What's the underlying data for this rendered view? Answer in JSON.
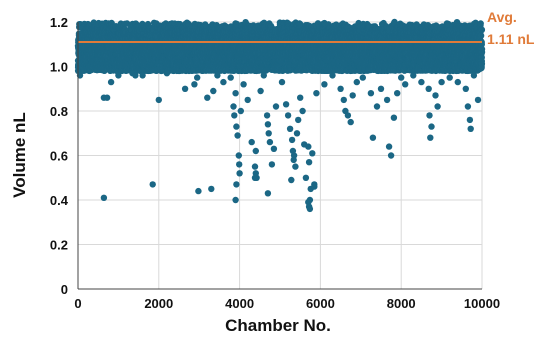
{
  "chart_data": {
    "type": "scatter",
    "xlabel": "Chamber No.",
    "ylabel": "Volume  nL",
    "xlim": [
      0,
      10000
    ],
    "ylim": [
      0,
      1.2
    ],
    "x_ticks": [
      0,
      2000,
      4000,
      6000,
      8000,
      10000
    ],
    "y_ticks": [
      0,
      0.2,
      0.4,
      0.6,
      0.8,
      1.0,
      1.2
    ],
    "y_tick_labels": [
      "0",
      "0.2",
      "0.4",
      "0.6",
      "0.8",
      "1.0",
      "1.2"
    ],
    "grid": true,
    "colors": {
      "points": "#1b6785",
      "average_line": "#e07b39",
      "grid": "#d9d9d9",
      "axis": "#444444"
    },
    "average": {
      "value": 1.11,
      "label_line1": "Avg.",
      "label_line2": "1.11 nL"
    },
    "dense_band": {
      "y_range": [
        0.98,
        1.2
      ],
      "point_count": 10000
    },
    "outliers": [
      [
        50,
        0.96
      ],
      [
        640,
        0.86
      ],
      [
        720,
        0.86
      ],
      [
        820,
        0.93
      ],
      [
        1000,
        0.96
      ],
      [
        1350,
        0.97
      ],
      [
        1420,
        0.96
      ],
      [
        1600,
        0.96
      ],
      [
        2000,
        0.85
      ],
      [
        2200,
        0.97
      ],
      [
        2650,
        0.9
      ],
      [
        2880,
        0.92
      ],
      [
        2950,
        0.95
      ],
      [
        3200,
        0.86
      ],
      [
        3350,
        0.89
      ],
      [
        3450,
        0.96
      ],
      [
        3600,
        0.93
      ],
      [
        3780,
        0.95
      ],
      [
        3850,
        0.82
      ],
      [
        3870,
        0.78
      ],
      [
        3900,
        0.88
      ],
      [
        3920,
        0.73
      ],
      [
        3950,
        0.69
      ],
      [
        3980,
        0.6
      ],
      [
        3990,
        0.56
      ],
      [
        4000,
        0.52
      ],
      [
        4030,
        0.8
      ],
      [
        4100,
        0.92
      ],
      [
        4200,
        0.85
      ],
      [
        4300,
        0.66
      ],
      [
        4380,
        0.55
      ],
      [
        4400,
        0.62
      ],
      [
        4420,
        0.5
      ],
      [
        4520,
        0.89
      ],
      [
        4600,
        0.96
      ],
      [
        4680,
        0.78
      ],
      [
        4700,
        0.74
      ],
      [
        4720,
        0.7
      ],
      [
        4750,
        0.66
      ],
      [
        4800,
        0.56
      ],
      [
        4850,
        0.63
      ],
      [
        4900,
        0.82
      ],
      [
        5050,
        0.93
      ],
      [
        5150,
        0.83
      ],
      [
        5200,
        0.78
      ],
      [
        5250,
        0.72
      ],
      [
        5300,
        0.67
      ],
      [
        5320,
        0.62
      ],
      [
        5340,
        0.58
      ],
      [
        5350,
        0.6
      ],
      [
        5380,
        0.55
      ],
      [
        5420,
        0.7
      ],
      [
        5450,
        0.76
      ],
      [
        5500,
        0.86
      ],
      [
        5560,
        0.8
      ],
      [
        5600,
        0.65
      ],
      [
        5640,
        0.5
      ],
      [
        5700,
        0.64
      ],
      [
        5720,
        0.57
      ],
      [
        5740,
        0.4
      ],
      [
        5760,
        0.45
      ],
      [
        5800,
        0.61
      ],
      [
        5850,
        0.47
      ],
      [
        5900,
        0.88
      ],
      [
        6100,
        0.92
      ],
      [
        6300,
        0.96
      ],
      [
        6500,
        0.9
      ],
      [
        6580,
        0.85
      ],
      [
        6620,
        0.8
      ],
      [
        6680,
        0.78
      ],
      [
        6750,
        0.75
      ],
      [
        6800,
        0.87
      ],
      [
        6900,
        0.93
      ],
      [
        7050,
        0.95
      ],
      [
        7250,
        0.88
      ],
      [
        7300,
        0.68
      ],
      [
        7400,
        0.82
      ],
      [
        7500,
        0.9
      ],
      [
        7650,
        0.85
      ],
      [
        7700,
        0.64
      ],
      [
        7750,
        0.6
      ],
      [
        7820,
        0.77
      ],
      [
        7900,
        0.88
      ],
      [
        8000,
        0.95
      ],
      [
        8100,
        0.92
      ],
      [
        8300,
        0.96
      ],
      [
        8500,
        0.93
      ],
      [
        8680,
        0.9
      ],
      [
        8700,
        0.78
      ],
      [
        8720,
        0.68
      ],
      [
        8750,
        0.73
      ],
      [
        8850,
        0.87
      ],
      [
        8900,
        0.82
      ],
      [
        9000,
        0.93
      ],
      [
        9200,
        0.95
      ],
      [
        9400,
        0.93
      ],
      [
        9600,
        0.9
      ],
      [
        9650,
        0.82
      ],
      [
        9700,
        0.76
      ],
      [
        9720,
        0.72
      ],
      [
        9800,
        0.96
      ],
      [
        9900,
        0.85
      ]
    ],
    "extreme_outliers": [
      [
        640,
        0.41
      ],
      [
        1850,
        0.47
      ],
      [
        2980,
        0.44
      ],
      [
        3300,
        0.45
      ],
      [
        3900,
        0.4
      ],
      [
        3920,
        0.47
      ],
      [
        4380,
        0.5
      ],
      [
        4400,
        0.52
      ],
      [
        4700,
        0.43
      ],
      [
        5280,
        0.49
      ],
      [
        5700,
        0.39
      ],
      [
        5720,
        0.37
      ],
      [
        5740,
        0.36
      ],
      [
        5850,
        0.46
      ]
    ]
  }
}
